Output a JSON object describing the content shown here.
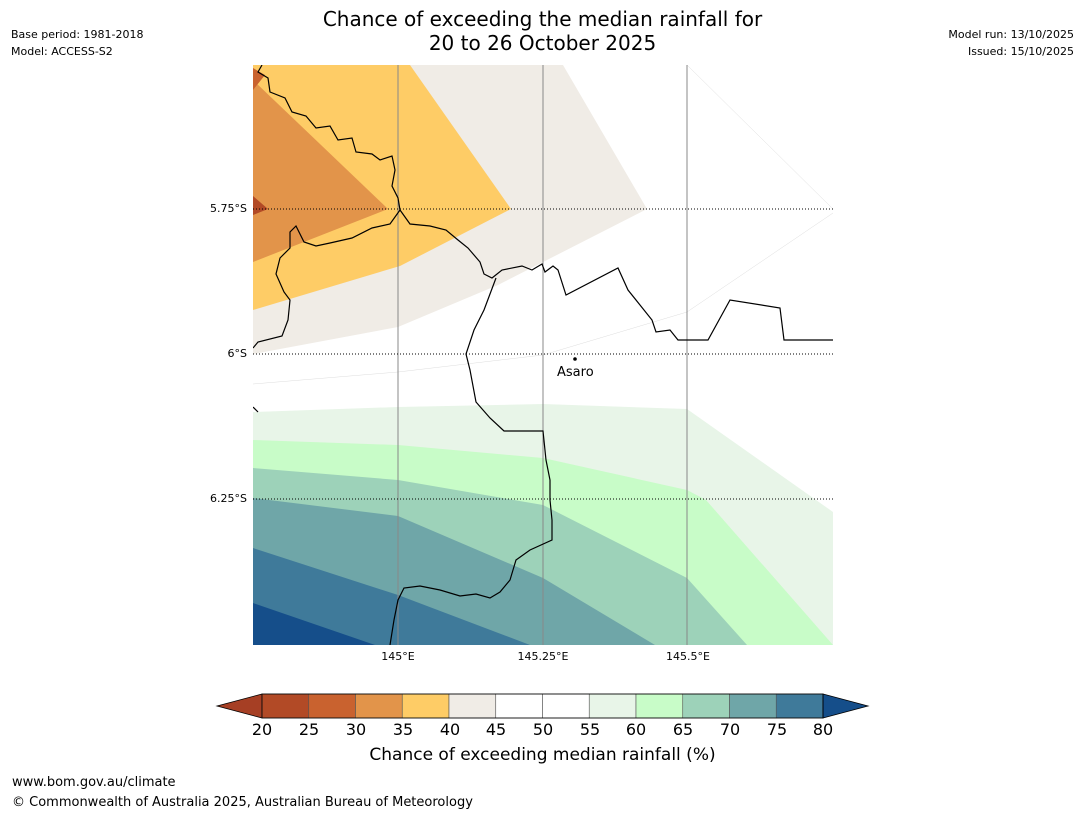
{
  "header": {
    "title_line1": "Chance of exceeding the median rainfall for",
    "title_line2": "20 to 26 October 2025",
    "base_period": "Base period: 1981-2018",
    "model": "Model: ACCESS-S2",
    "model_run": "Model run: 13/10/2025",
    "issued": "Issued: 15/10/2025"
  },
  "map": {
    "lat_labels": [
      "5.75°S",
      "6°S",
      "6.25°S"
    ],
    "lon_labels": [
      "145°E",
      "145.25°E",
      "145.5°E"
    ],
    "place": "Asaro"
  },
  "colorbar": {
    "ticks": [
      "20",
      "25",
      "30",
      "35",
      "40",
      "45",
      "50",
      "55",
      "60",
      "65",
      "70",
      "75",
      "80"
    ],
    "colors": [
      "#a63f24",
      "#b24a26",
      "#c9622f",
      "#e2944a",
      "#fecc66",
      "#f0ece6",
      "#ffffff",
      "#ffffff",
      "#e8f5e8",
      "#c8fcc8",
      "#9dd2b9",
      "#6fa6a8",
      "#3f7a9a",
      "#154e8a"
    ],
    "label": "Chance of exceeding median rainfall (%)"
  },
  "footer": {
    "url": "www.bom.gov.au/climate",
    "copyright": "© Commonwealth of Australia 2025, Australian Bureau of Meteorology"
  }
}
